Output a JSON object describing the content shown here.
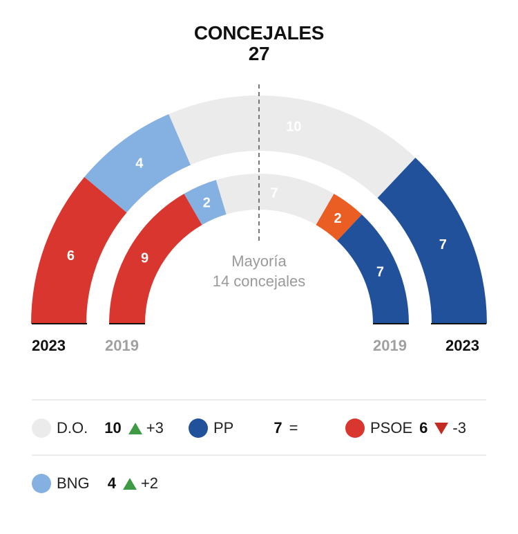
{
  "header": {
    "title": "CONCEJALES",
    "total": "27"
  },
  "majority": {
    "line1": "Mayoría",
    "line2": "14 concejales"
  },
  "colors": {
    "DO": "#ebebeb",
    "BNG": "#85b0e2",
    "PSOE": "#d9362f",
    "PP": "#22519c",
    "OTHER": "#ea5e23"
  },
  "chart_data": {
    "type": "parliament-semicircle",
    "title": "CONCEJALES",
    "total_seats": 27,
    "majority_seats": 14,
    "rings": [
      {
        "year": "2023",
        "segments": [
          {
            "party": "PSOE",
            "seats": 6,
            "color": "#d9362f",
            "label_color": "#ffffff"
          },
          {
            "party": "BNG",
            "seats": 4,
            "color": "#85b0e2",
            "label_color": "#ffffff"
          },
          {
            "party": "D.O.",
            "seats": 10,
            "color": "#ebebeb",
            "label_color": "#ffffff"
          },
          {
            "party": "PP",
            "seats": 7,
            "color": "#22519c",
            "label_color": "#ffffff"
          }
        ]
      },
      {
        "year": "2019",
        "segments": [
          {
            "party": "PSOE",
            "seats": 9,
            "color": "#d9362f",
            "label_color": "#ffffff"
          },
          {
            "party": "BNG",
            "seats": 2,
            "color": "#85b0e2",
            "label_color": "#ffffff"
          },
          {
            "party": "D.O.",
            "seats": 7,
            "color": "#ebebeb",
            "label_color": "#ffffff"
          },
          {
            "party": "",
            "seats": 2,
            "color": "#ea5e23",
            "label_color": "#ffffff"
          },
          {
            "party": "PP",
            "seats": 7,
            "color": "#22519c",
            "label_color": "#ffffff"
          }
        ]
      }
    ]
  },
  "years": {
    "outer": "2023",
    "inner": "2019"
  },
  "legend": [
    {
      "party": "D.O.",
      "seats": "10",
      "trend": "up",
      "change": "+3",
      "color": "#ebebeb"
    },
    {
      "party": "PP",
      "seats": "7",
      "trend": "equal",
      "change": "=",
      "color": "#22519c"
    },
    {
      "party": "PSOE",
      "seats": "6",
      "trend": "down",
      "change": "-3",
      "color": "#d9362f"
    },
    {
      "party": "BNG",
      "seats": "4",
      "trend": "up",
      "change": "+2",
      "color": "#85b0e2"
    }
  ]
}
